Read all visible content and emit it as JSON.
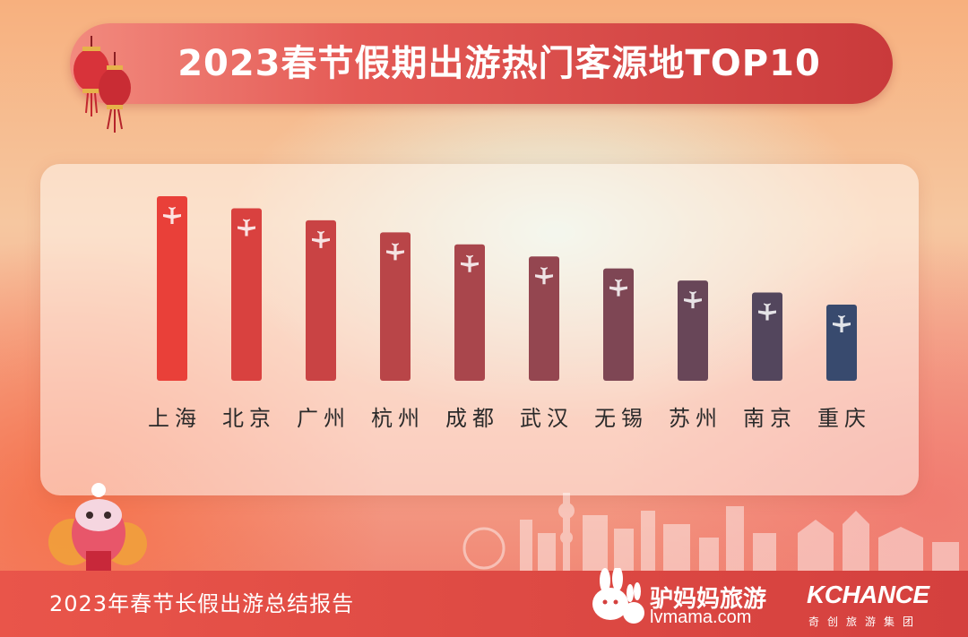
{
  "header": {
    "title": "2023春节假期出游热门客源地TOP10"
  },
  "chart_data": {
    "type": "bar",
    "title": "2023春节假期出游热门客源地TOP10",
    "categories": [
      "上海",
      "北京",
      "广州",
      "杭州",
      "成都",
      "武汉",
      "无锡",
      "苏州",
      "南京",
      "重庆"
    ],
    "values": [
      10,
      9,
      8,
      7,
      6,
      5,
      4,
      3,
      2,
      1
    ],
    "value_meaning": "rank order (1st highest), bars decrease evenly",
    "ylim": [
      0,
      10
    ],
    "grid": false,
    "bar_colors": [
      "#e94039",
      "#d9413f",
      "#c94344",
      "#b94548",
      "#a9464c",
      "#944650",
      "#7e4654",
      "#684658",
      "#53465d",
      "#384a6e"
    ],
    "bar_icon": "airplane-icon"
  },
  "footer": {
    "report_title": "2023年春节长假出游总结报告",
    "brand_lvmama_name": "驴妈妈旅游",
    "brand_lvmama_url": "lvmama.com",
    "brand_kchance_name": "KCHANCE",
    "brand_kchance_sub": "奇创旅游集团"
  },
  "decor": {
    "lantern_color": "#d8333a",
    "skyline_color": "#ffffff"
  }
}
